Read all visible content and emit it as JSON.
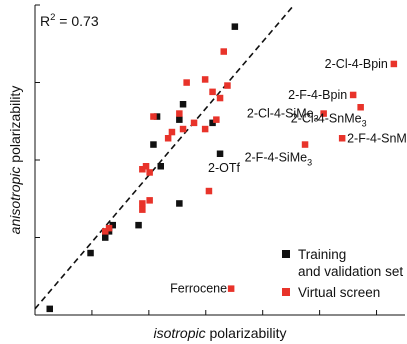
{
  "chart_data": {
    "type": "scatter",
    "title": "",
    "xlabel": "isotropic polarizability",
    "xlabel_italic_part": "isotropic",
    "xlabel_rest": " polarizability",
    "ylabel": "anisotropic polarizability",
    "ylabel_italic_part": "anisotropic",
    "ylabel_rest": " polarizability",
    "xlim": [
      0,
      10
    ],
    "ylim": [
      0,
      10
    ],
    "axis_tick_labels_shown": false,
    "grid": false,
    "r_squared_label": "R",
    "r_squared_sup": "2",
    "r_squared_value": " = 0.73",
    "fit_line": {
      "style": "dashed",
      "points": [
        [
          0,
          0.2
        ],
        [
          7,
          10
        ]
      ]
    },
    "legend": {
      "placement": "bottom-right",
      "entries": [
        {
          "series": "training",
          "line1": "Training",
          "line2": "and validation set"
        },
        {
          "series": "virtual",
          "line1": "Virtual screen",
          "line2": ""
        }
      ]
    },
    "series": [
      {
        "name": "Training and validation set",
        "key": "training",
        "color": "#111111",
        "marker": "square",
        "points": [
          {
            "x": 0.4,
            "y": 0.2
          },
          {
            "x": 1.5,
            "y": 2.0
          },
          {
            "x": 1.9,
            "y": 2.5
          },
          {
            "x": 2.1,
            "y": 2.9
          },
          {
            "x": 2.0,
            "y": 2.7
          },
          {
            "x": 2.8,
            "y": 2.9
          },
          {
            "x": 3.2,
            "y": 5.5
          },
          {
            "x": 3.3,
            "y": 6.4
          },
          {
            "x": 3.4,
            "y": 4.8
          },
          {
            "x": 3.9,
            "y": 3.6
          },
          {
            "x": 3.9,
            "y": 6.3
          },
          {
            "x": 4.0,
            "y": 6.8
          },
          {
            "x": 4.8,
            "y": 6.2
          },
          {
            "x": 5.0,
            "y": 5.2
          },
          {
            "x": 5.4,
            "y": 9.3
          }
        ]
      },
      {
        "name": "Virtual screen",
        "key": "virtual",
        "color": "#e8332a",
        "marker": "square",
        "points": [
          {
            "x": 1.9,
            "y": 2.7
          },
          {
            "x": 2.0,
            "y": 2.8
          },
          {
            "x": 2.9,
            "y": 3.4
          },
          {
            "x": 2.9,
            "y": 3.6
          },
          {
            "x": 3.1,
            "y": 3.7
          },
          {
            "x": 2.9,
            "y": 4.7
          },
          {
            "x": 3.0,
            "y": 4.8
          },
          {
            "x": 3.1,
            "y": 4.6
          },
          {
            "x": 3.2,
            "y": 6.4
          },
          {
            "x": 3.6,
            "y": 5.7
          },
          {
            "x": 3.7,
            "y": 5.9
          },
          {
            "x": 3.9,
            "y": 6.5
          },
          {
            "x": 4.0,
            "y": 6.0
          },
          {
            "x": 4.1,
            "y": 7.5
          },
          {
            "x": 4.3,
            "y": 6.2
          },
          {
            "x": 4.6,
            "y": 6.0
          },
          {
            "x": 4.6,
            "y": 7.6
          },
          {
            "x": 4.7,
            "y": 4.0
          },
          {
            "x": 4.9,
            "y": 6.3
          },
          {
            "x": 5.0,
            "y": 7.0
          },
          {
            "x": 5.1,
            "y": 8.5
          },
          {
            "x": 5.2,
            "y": 7.4
          },
          {
            "x": 4.8,
            "y": 7.2
          },
          {
            "x": 5.3,
            "y": 0.85
          },
          {
            "x": 7.3,
            "y": 5.5
          },
          {
            "x": 7.8,
            "y": 6.5
          },
          {
            "x": 8.3,
            "y": 5.7
          },
          {
            "x": 8.6,
            "y": 7.1
          },
          {
            "x": 8.8,
            "y": 6.7
          },
          {
            "x": 9.7,
            "y": 8.1
          }
        ]
      }
    ],
    "annotations": [
      {
        "base": "2-Cl-4-Bpin",
        "sub": "",
        "tail": "",
        "x": 9.7,
        "y": 8.1,
        "anchor": "end",
        "dx": -6,
        "dy": 4
      },
      {
        "base": "2-F-4-Bpin",
        "sub": "",
        "tail": "",
        "x": 8.6,
        "y": 7.1,
        "anchor": "end",
        "dx": -6,
        "dy": 4
      },
      {
        "base": "2-Cl-4-SiMe",
        "sub": "3",
        "tail": "",
        "x": 7.8,
        "y": 6.5,
        "anchor": "end",
        "dx": -5,
        "dy": 4
      },
      {
        "base": "2-Cl-4-SnMe",
        "sub": "3",
        "tail": "",
        "x": 8.8,
        "y": 6.7,
        "anchor": "end",
        "dx": 6,
        "dy": 15
      },
      {
        "base": "2-F-4-SnMe",
        "sub": "3",
        "tail": "",
        "x": 8.3,
        "y": 5.7,
        "anchor": "start",
        "dx": 5,
        "dy": 4
      },
      {
        "base": "2-F-4-SiMe",
        "sub": "3",
        "tail": "",
        "x": 7.3,
        "y": 5.5,
        "anchor": "end",
        "dx": 7,
        "dy": 17
      },
      {
        "base": "2-OTf",
        "sub": "",
        "tail": "",
        "x": 5.0,
        "y": 5.2,
        "anchor": "middle",
        "dx": 4,
        "dy": 18
      },
      {
        "base": "Ferrocene",
        "sub": "",
        "tail": "",
        "x": 5.3,
        "y": 0.85,
        "anchor": "end",
        "dx": -4,
        "dy": 4
      }
    ]
  }
}
